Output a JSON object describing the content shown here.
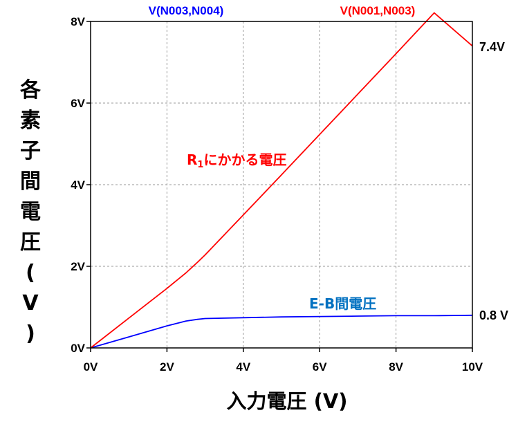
{
  "chart_data": {
    "type": "line",
    "x": [
      0,
      1,
      2,
      2.5,
      2.8,
      3,
      4,
      5,
      6,
      7,
      8,
      9,
      10
    ],
    "xlim": [
      0,
      10
    ],
    "ylim": [
      0,
      8
    ],
    "xticks": [
      "0V",
      "2V",
      "4V",
      "6V",
      "8V",
      "10V"
    ],
    "yticks": [
      "0V",
      "2V",
      "4V",
      "6V",
      "8V"
    ],
    "xlabel": "入力電圧 (V)",
    "ylabel": "各素子間電圧(V)",
    "grid": true,
    "series": [
      {
        "name": "V(N003,N004)",
        "color": "#0000ff",
        "values": [
          0,
          0.27,
          0.54,
          0.66,
          0.7,
          0.72,
          0.74,
          0.76,
          0.77,
          0.78,
          0.79,
          0.79,
          0.8
        ]
      },
      {
        "name": "V(N001,N003)",
        "color": "#ff0000",
        "values": [
          0,
          0.73,
          1.46,
          1.84,
          2.1,
          2.28,
          3.26,
          4.24,
          5.23,
          6.22,
          7.21,
          8.21,
          7.4
        ]
      }
    ],
    "annotations": [
      {
        "text": "R",
        "subscript": "1",
        "suffix": "にかかる電圧",
        "color": "#ff0000"
      },
      {
        "text": "E-B間電圧",
        "color": "#0070c0"
      }
    ],
    "end_labels": [
      "7.4V",
      "0.8 V"
    ]
  }
}
